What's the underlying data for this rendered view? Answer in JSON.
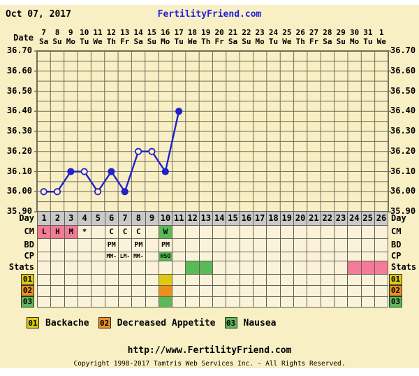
{
  "colors": {
    "panel_bg": "#f9efc4",
    "cell_bg": "#faf3da",
    "grid_line": "#6f6f5c",
    "day_row_bg": "#c9c9c9",
    "line_blue": "#2222cc",
    "link_blue": "#2222dd",
    "pink": "#f47b97",
    "green": "#5aba58",
    "yellow": "#decb11",
    "orange": "#ec8f1e"
  },
  "header": {
    "chart_date": "Oct 07, 2017",
    "site_link": "FertilityFriend.com"
  },
  "date_axis": {
    "label": "Date",
    "dates": [
      "7",
      "8",
      "9",
      "10",
      "11",
      "12",
      "13",
      "14",
      "15",
      "16",
      "17",
      "18",
      "19",
      "20",
      "21",
      "22",
      "23",
      "24",
      "25",
      "26",
      "27",
      "28",
      "29",
      "30",
      "31",
      "1"
    ],
    "weekdays": [
      "Sa",
      "Su",
      "Mo",
      "Tu",
      "We",
      "Th",
      "Fr",
      "Sa",
      "Su",
      "Mo",
      "Tu",
      "We",
      "Th",
      "Fr",
      "Sa",
      "Su",
      "Mo",
      "Tu",
      "We",
      "Th",
      "Fr",
      "Sa",
      "Su",
      "Mo",
      "Tu",
      "We"
    ]
  },
  "temp_axis": {
    "labels": [
      "36.70",
      "36.60",
      "36.50",
      "36.40",
      "36.30",
      "36.20",
      "36.10",
      "36.00",
      "35.90"
    ]
  },
  "chart_data": {
    "type": "line",
    "x": [
      1,
      2,
      3,
      4,
      5,
      6,
      7,
      8,
      9,
      10,
      11
    ],
    "values": [
      36.0,
      36.0,
      36.1,
      36.1,
      36.0,
      36.1,
      36.0,
      36.2,
      36.2,
      36.1,
      36.4
    ],
    "open_marker": [
      true,
      true,
      false,
      true,
      true,
      false,
      false,
      true,
      true,
      false,
      false
    ],
    "ylim": [
      35.9,
      36.7
    ],
    "y_gridstep": 0.05,
    "x_count": 26,
    "grid": true,
    "line_color": "#2222cc"
  },
  "day_axis": {
    "label": "Day",
    "days": [
      "1",
      "2",
      "3",
      "4",
      "5",
      "6",
      "7",
      "8",
      "9",
      "10",
      "11",
      "12",
      "13",
      "14",
      "15",
      "16",
      "17",
      "18",
      "19",
      "20",
      "21",
      "22",
      "23",
      "24",
      "25",
      "26"
    ]
  },
  "data_rows": [
    {
      "key": "cm",
      "label": "CM",
      "cells": [
        {
          "day": 1,
          "text": "L",
          "bg": "pink"
        },
        {
          "day": 2,
          "text": "H",
          "bg": "pink"
        },
        {
          "day": 3,
          "text": "M",
          "bg": "pink"
        },
        {
          "day": 4,
          "text": "*"
        },
        {
          "day": 6,
          "text": "C"
        },
        {
          "day": 7,
          "text": "C"
        },
        {
          "day": 8,
          "text": "C"
        },
        {
          "day": 10,
          "text": "W",
          "bg": "green"
        }
      ]
    },
    {
      "key": "bd",
      "label": "BD",
      "cells": [
        {
          "day": 6,
          "text": "PM"
        },
        {
          "day": 8,
          "text": "PM"
        },
        {
          "day": 10,
          "text": "PM"
        }
      ]
    },
    {
      "key": "cp",
      "label": "CP",
      "cells": [
        {
          "day": 6,
          "text": "MM-"
        },
        {
          "day": 7,
          "text": "LM-"
        },
        {
          "day": 8,
          "text": "MM-"
        },
        {
          "day": 10,
          "text": "HSO",
          "bg": "green"
        }
      ]
    },
    {
      "key": "stats",
      "label": "Stats",
      "cells": [
        {
          "day": 12,
          "bg": "green"
        },
        {
          "day": 13,
          "bg": "green"
        },
        {
          "day": 24,
          "bg": "pink"
        },
        {
          "day": 25,
          "bg": "pink"
        },
        {
          "day": 26,
          "bg": "pink"
        }
      ]
    },
    {
      "key": "sym01",
      "label": "01",
      "label_color": "yellow",
      "cells": [
        {
          "day": 10,
          "bg": "yellow"
        }
      ]
    },
    {
      "key": "sym02",
      "label": "02",
      "label_color": "orange",
      "cells": [
        {
          "day": 10,
          "bg": "orange"
        }
      ]
    },
    {
      "key": "sym03",
      "label": "03",
      "label_color": "green",
      "cells": [
        {
          "day": 10,
          "bg": "green"
        }
      ]
    }
  ],
  "legend": {
    "items": [
      {
        "code": "01",
        "label": "Backache",
        "color": "yellow"
      },
      {
        "code": "02",
        "label": "Decreased Appetite",
        "color": "orange"
      },
      {
        "code": "03",
        "label": "Nausea",
        "color": "green"
      }
    ]
  },
  "footer": {
    "url": "http://www.FertilityFriend.com",
    "copyright": "Copyright 1998-2017 Tamtris Web Services Inc. - All Rights Reserved."
  }
}
